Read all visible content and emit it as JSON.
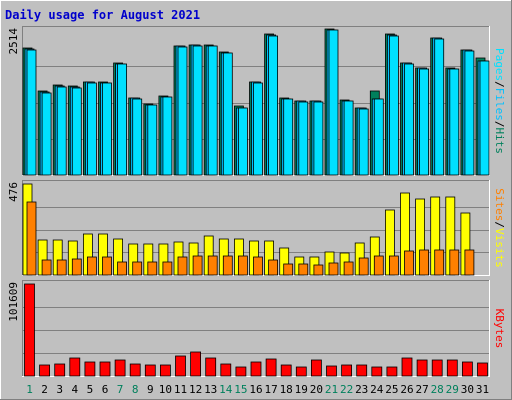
{
  "colors": {
    "background": "#c0c0c0",
    "hits": "#00805c",
    "files": "#00c0ff",
    "pages": "#00e0ff",
    "visits": "#ffff00",
    "sites": "#ff8000",
    "kbytes": "#ff0000",
    "weekend_label": "#00805c",
    "weekday_label": "#000000",
    "title": "#0000cc"
  },
  "chart_data": {
    "type": "bar",
    "title": "Daily usage for August 2021",
    "days": [
      "1",
      "2",
      "3",
      "4",
      "5",
      "6",
      "7",
      "8",
      "9",
      "10",
      "11",
      "12",
      "13",
      "14",
      "15",
      "16",
      "17",
      "18",
      "19",
      "20",
      "21",
      "22",
      "23",
      "24",
      "25",
      "26",
      "27",
      "28",
      "29",
      "30",
      "31"
    ],
    "weekend_days": [
      "1",
      "7",
      "8",
      "14",
      "15",
      "21",
      "22",
      "28",
      "29"
    ],
    "panels": [
      {
        "id": "hits",
        "ymax_label": "2514",
        "ymax": 2514,
        "series": [
          {
            "name": "Hits",
            "color": "#00805c",
            "values": [
              2200,
              1450,
              1560,
              1540,
              1620,
              1610,
              1940,
              1340,
              1230,
              1370,
              2240,
              2260,
              2250,
              2130,
              1190,
              1620,
              2440,
              1330,
              1290,
              1290,
              2530,
              1300,
              1170,
              1460,
              2440,
              1950,
              1860,
              2380,
              1850,
              2170,
              2030
            ]
          },
          {
            "name": "Files",
            "color": "#00c0ff",
            "values": [
              2180,
              1440,
              1540,
              1520,
              1610,
              1600,
              1930,
              1330,
              1220,
              1360,
              2230,
              2250,
              2240,
              2120,
              1170,
              1610,
              2420,
              1320,
              1280,
              1280,
              2520,
              1290,
              1160,
              1320,
              2420,
              1940,
              1850,
              2370,
              1840,
              2160,
              1980
            ]
          },
          {
            "name": "Pages",
            "color": "#00e0ff",
            "values": [
              2170,
              1430,
              1530,
              1510,
              1600,
              1590,
              1920,
              1320,
              1210,
              1350,
              2220,
              2240,
              2230,
              2110,
              1160,
              1600,
              2410,
              1310,
              1270,
              1270,
              2510,
              1280,
              1150,
              1310,
              2410,
              1930,
              1840,
              2360,
              1830,
              2150,
              1970
            ]
          }
        ],
        "right_label": [
          "Pages",
          "Files",
          "Hits"
        ]
      },
      {
        "id": "visits",
        "ymax_label": "476",
        "ymax": 476,
        "series": [
          {
            "name": "Visits",
            "color": "#ffff00",
            "values": [
              476,
              185,
              185,
              180,
              215,
              215,
              190,
              160,
              160,
              160,
              175,
              165,
              205,
              190,
              190,
              180,
              180,
              140,
              95,
              95,
              120,
              115,
              165,
              200,
              340,
              430,
              395,
              410,
              410,
              325,
              0
            ]
          },
          {
            "name": "Sites",
            "color": "#ff8000",
            "values": [
              380,
              80,
              80,
              85,
              95,
              95,
              70,
              70,
              70,
              70,
              95,
              100,
              100,
              100,
              100,
              95,
              80,
              60,
              55,
              50,
              65,
              70,
              90,
              100,
              100,
              125,
              130,
              130,
              130,
              130,
              0
            ]
          }
        ],
        "right_label": [
          "Sites",
          "Visits"
        ]
      },
      {
        "id": "kbytes",
        "ymax_label": "101609",
        "ymax": 101609,
        "series": [
          {
            "name": "KBytes",
            "color": "#ff0000",
            "values": [
              101609,
              12000,
              13000,
              20000,
              16000,
              16000,
              18000,
              13000,
              12000,
              12500,
              22000,
              26000,
              20000,
              13000,
              10000,
              15000,
              19000,
              12000,
              10000,
              18000,
              11000,
              12000,
              12500,
              10000,
              10000,
              20000,
              18000,
              18000,
              18000,
              16000,
              14000
            ]
          }
        ],
        "right_label": [
          "KBytes"
        ]
      }
    ]
  }
}
